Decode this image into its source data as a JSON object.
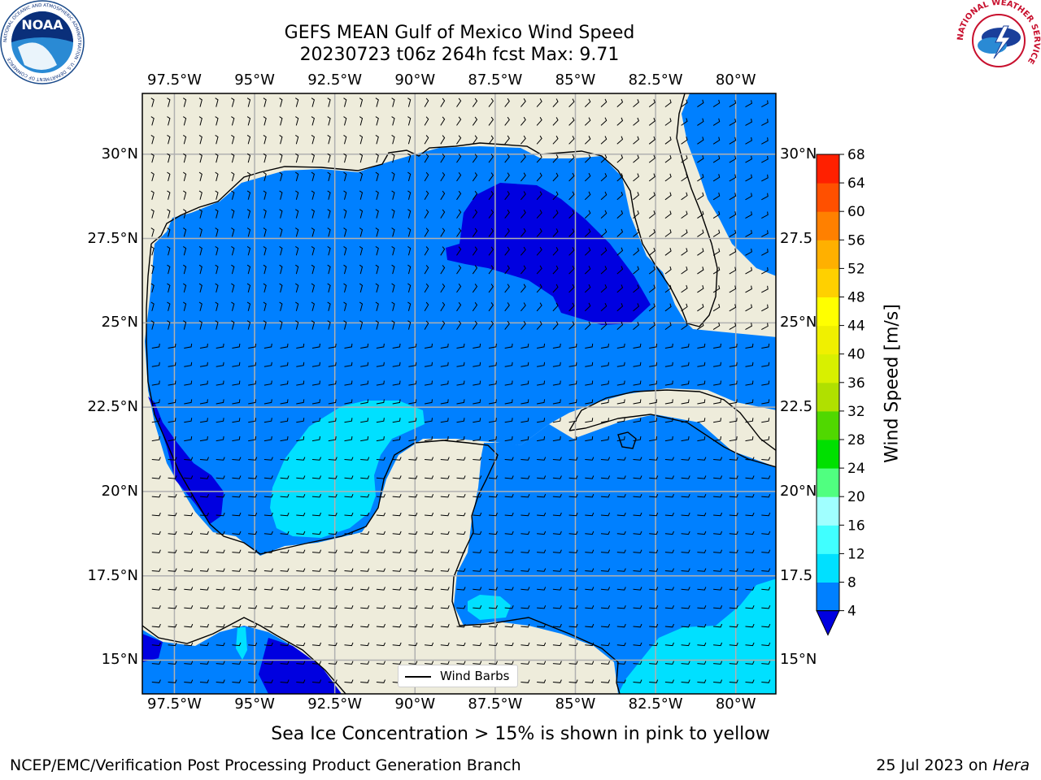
{
  "title": {
    "line1": "GEFS MEAN Gulf of Mexico Wind Speed",
    "line2": "20230723 t06z 264h fcst   Max: 9.71"
  },
  "map": {
    "lon_range": [
      -98.5,
      -78.75
    ],
    "lat_range": [
      14.0,
      31.8
    ],
    "lon_ticks": [
      -97.5,
      -95,
      -92.5,
      -90,
      -87.5,
      -85,
      -82.5,
      -80
    ],
    "lat_ticks": [
      15,
      17.5,
      20,
      22.5,
      25,
      27.5,
      30
    ],
    "lon_tick_labels": [
      "97.5°W",
      "95°W",
      "92.5°W",
      "90°W",
      "87.5°W",
      "85°W",
      "82.5°W",
      "80°W"
    ],
    "lat_tick_labels_left": [
      "15°N",
      "17.5°N",
      "20°N",
      "22.5°N",
      "25°N",
      "27.5°N",
      "30°N"
    ],
    "lat_tick_labels_right": [
      "15°N",
      "17.5",
      "20°N",
      "22.5",
      "25°N",
      "27.5",
      "30°N"
    ],
    "grid": true,
    "legend_label": "Wind Barbs",
    "land_color": "#eeecdb",
    "coast_color": "#000000"
  },
  "colorbar": {
    "label": "Wind Speed [m/s]",
    "levels": [
      4,
      8,
      12,
      16,
      20,
      24,
      28,
      32,
      36,
      40,
      44,
      48,
      52,
      56,
      60,
      64,
      68
    ],
    "colors": [
      "#0080ff",
      "#00e0ff",
      "#40ffff",
      "#a0ffff",
      "#50ff80",
      "#00e000",
      "#50d800",
      "#b0e000",
      "#d8f000",
      "#f0f000",
      "#ffff00",
      "#ffd000",
      "#ffb000",
      "#ff8000",
      "#ff5000",
      "#ff2000"
    ],
    "under_color": "#0000e0"
  },
  "chart_data": {
    "type": "heatmap",
    "title": "GEFS MEAN Gulf of Mexico Wind Speed",
    "subtitle": "20230723 t06z 264h fcst   Max: 9.71",
    "variable": "Wind Speed [m/s]",
    "max": 9.71,
    "regions": [
      {
        "area": "Most of Gulf of Mexico",
        "range": "4-8"
      },
      {
        "area": "NE Gulf off Florida panhandle",
        "range": "< 4"
      },
      {
        "area": "SW Gulf off Veracruz",
        "range": "< 4"
      },
      {
        "area": "Bay of Campeche",
        "range": "8-12"
      },
      {
        "area": "SE Caribbean",
        "range": "8-12"
      },
      {
        "area": "Caribbean south of Cuba",
        "range": "4-8"
      }
    ]
  },
  "caption": "Sea Ice Concentration > 15% is shown in pink to yellow",
  "footer": {
    "left": "NCEP/EMC/Verification Post Processing Product Generation Branch",
    "right_date": "25 Jul 2023 on ",
    "right_machine": "Hera"
  },
  "logos": {
    "left": {
      "name": "noaa-logo",
      "text": "NOAA",
      "ring_text": "NATIONAL OCEANIC AND ATMOSPHERIC ADMINISTRATION · U.S. DEPARTMENT OF COMMERCE"
    },
    "right": {
      "name": "nws-logo",
      "ring_text": "NATIONAL WEATHER SERVICE"
    }
  }
}
